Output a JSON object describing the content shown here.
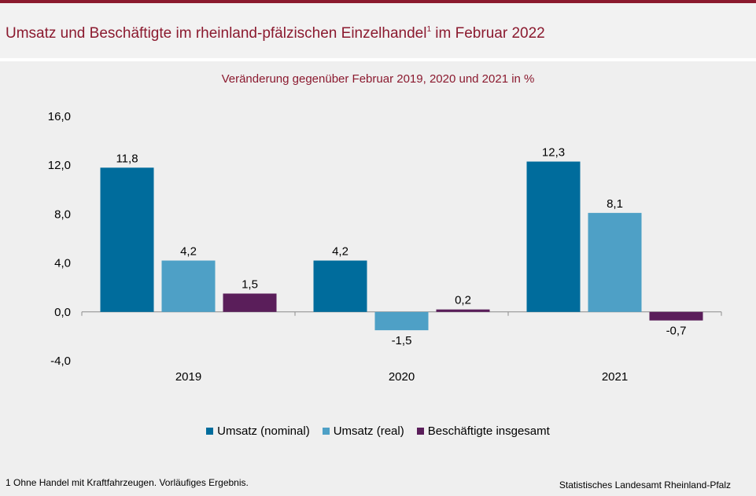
{
  "header": {
    "title": "Umsatz und Beschäftigte im rheinland-pfälzischen Einzelhandel",
    "title_sup": "1",
    "title_suffix": " im Februar 2022",
    "subtitle": "Veränderung gegenüber Februar 2019, 2020 und 2021 in %"
  },
  "footer": {
    "footnote": "1 Ohne Handel mit Kraftfahrzeugen. Vorläufiges Ergebnis.",
    "source": "Statistisches Landesamt Rheinland-Pfalz"
  },
  "chart_data": {
    "type": "bar",
    "categories": [
      "2019",
      "2020",
      "2021"
    ],
    "series": [
      {
        "name": "Umsatz (nominal)",
        "values": [
          11.8,
          4.2,
          12.3
        ],
        "color": "#006c9c"
      },
      {
        "name": "Umsatz (real)",
        "values": [
          4.2,
          -1.5,
          8.1
        ],
        "color": "#4ea0c6"
      },
      {
        "name": "Beschäftigte insgesamt",
        "values": [
          1.5,
          0.2,
          -0.7
        ],
        "color": "#5a1e5a"
      }
    ],
    "data_labels": [
      [
        "11,8",
        "4,2",
        "1,5"
      ],
      [
        "4,2",
        "-1,5",
        "0,2"
      ],
      [
        "12,3",
        "8,1",
        "-0,7"
      ]
    ],
    "y_ticks": [
      16,
      12,
      8,
      4,
      0,
      -4
    ],
    "y_tick_labels": [
      "16,0",
      "12,0",
      "8,0",
      "4,0",
      "0,0",
      "-4,0"
    ],
    "ylim": [
      -4,
      16
    ],
    "grid": false,
    "legend_position": "bottom"
  }
}
